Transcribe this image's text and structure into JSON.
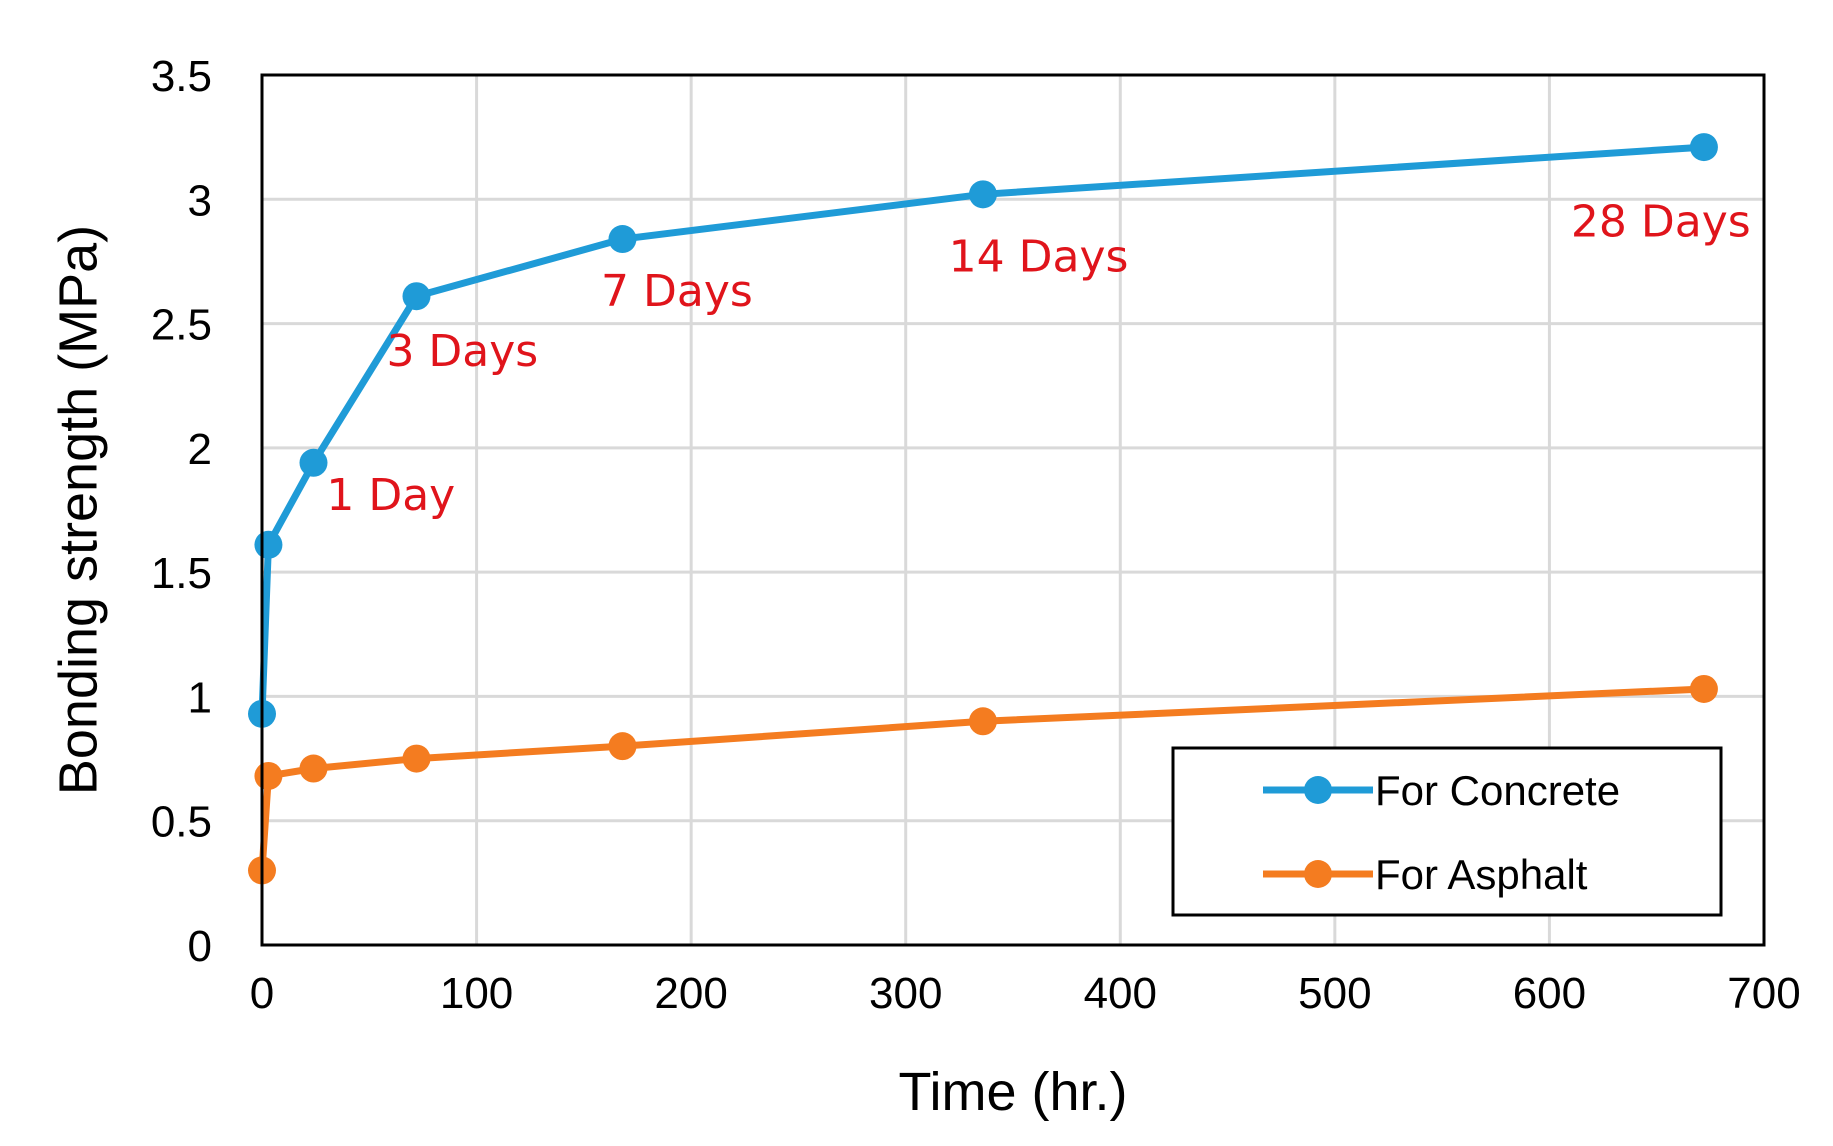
{
  "chart_data": {
    "type": "line",
    "title": "",
    "xlabel": "Time (hr.)",
    "ylabel": "Bonding strength (MPa)",
    "xlim": [
      0,
      700
    ],
    "ylim": [
      0,
      3.5
    ],
    "xticks": [
      0,
      100,
      200,
      300,
      400,
      500,
      600,
      700
    ],
    "xtick_labels": [
      "0",
      "100",
      "200",
      "300",
      "400",
      "500",
      "600",
      "700"
    ],
    "yticks": [
      0,
      0.5,
      1,
      1.5,
      2,
      2.5,
      3,
      3.5
    ],
    "ytick_labels": [
      "0",
      "0.5",
      "1",
      "1.5",
      "2",
      "2.5",
      "3",
      "3.5"
    ],
    "grid": true,
    "legend_position": "bottom-right",
    "series": [
      {
        "name": "For Concrete",
        "color": "#1f9bd7",
        "x": [
          0,
          3,
          24,
          72,
          168,
          336,
          672
        ],
        "y": [
          0.93,
          1.61,
          1.94,
          2.61,
          2.84,
          3.02,
          3.21
        ]
      },
      {
        "name": "For Asphalt",
        "color": "#f47c20",
        "x": [
          0,
          3,
          24,
          72,
          168,
          336,
          672
        ],
        "y": [
          0.3,
          0.68,
          0.71,
          0.75,
          0.8,
          0.9,
          1.03
        ]
      }
    ],
    "annotations": [
      {
        "text": "1 Day",
        "x": 30,
        "y": 1.75
      },
      {
        "text": "3 Days",
        "x": 58,
        "y": 2.33
      },
      {
        "text": "7 Days",
        "x": 158,
        "y": 2.57
      },
      {
        "text": "14 Days",
        "x": 320,
        "y": 2.71
      },
      {
        "text": "28 Days",
        "x": 610,
        "y": 2.85
      }
    ],
    "annotation_color": "#e0141b"
  }
}
